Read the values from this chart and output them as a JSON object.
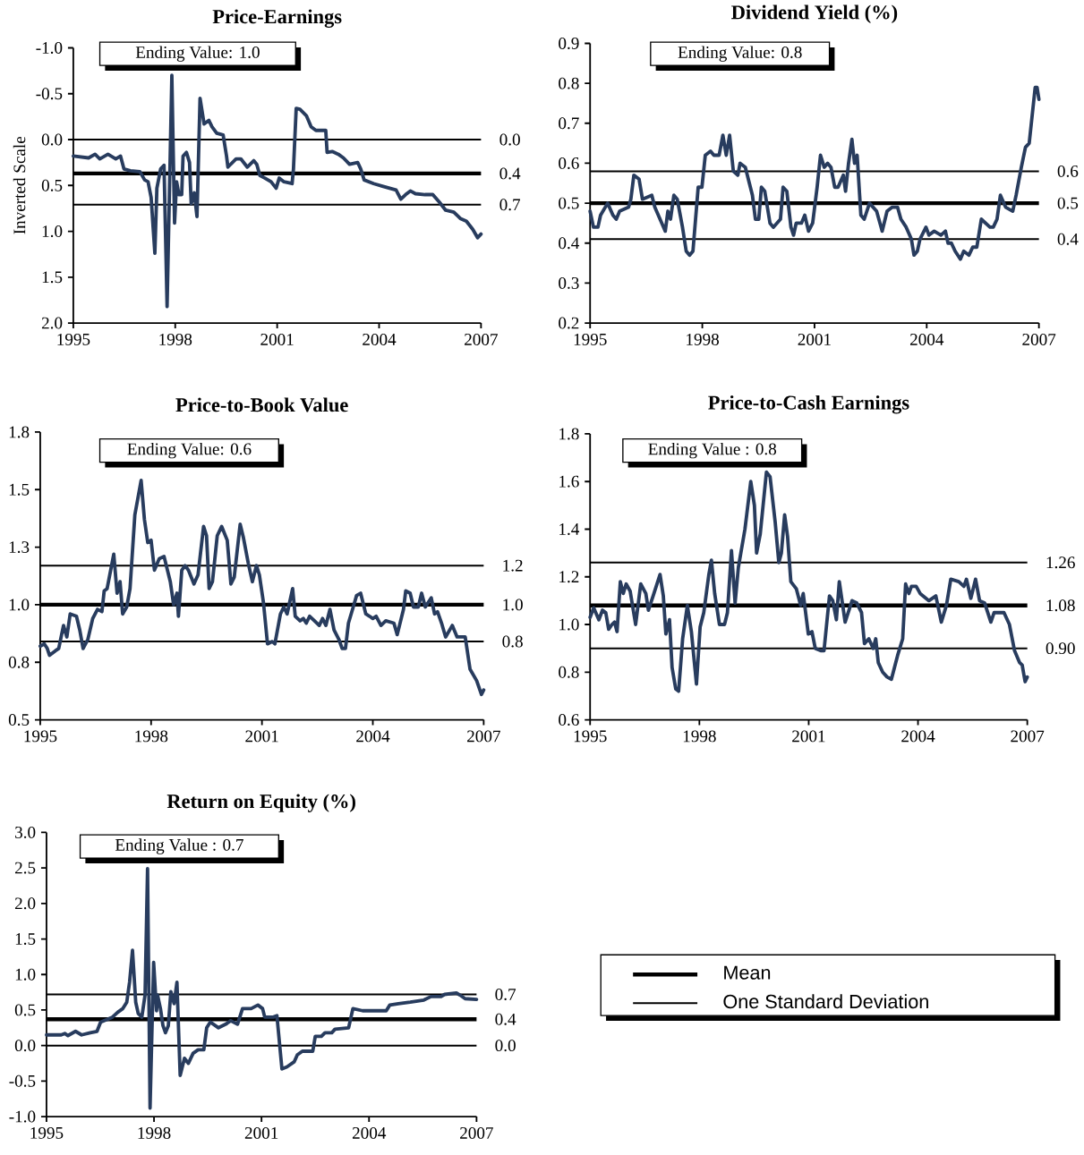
{
  "chart_data": [
    {
      "type": "line",
      "title": "Price-Earnings",
      "ylabel": "Inverted Scale",
      "annotations": [
        "Ending Value: 1.0"
      ],
      "xlim": [
        1995,
        2007
      ],
      "xticks": [
        1995,
        1998,
        2001,
        2004,
        2007
      ],
      "ylim": [
        2.0,
        -1.0
      ],
      "yticks": [
        {
          "value": -1,
          "label": "-1.0"
        },
        -0.5,
        {
          "value": 0,
          "label": "0.0"
        },
        0.5,
        {
          "value": 1,
          "label": "1.0"
        },
        1.5,
        {
          "value": 2,
          "label": "2.0"
        }
      ],
      "ref_lines": [
        {
          "axis": "y",
          "value": 0.0,
          "label": "0.0"
        },
        {
          "axis": "y",
          "value": 0.37,
          "label": "0.4"
        },
        {
          "axis": "y",
          "value": 0.71,
          "label": "0.7"
        }
      ],
      "series": [
        {
          "color": "#283c5e",
          "x": [
            1995.0,
            1995.45,
            1995.64,
            1995.78,
            1996.02,
            1996.25,
            1996.39,
            1996.49,
            1996.68,
            1996.96,
            1997.1,
            1997.2,
            1997.29,
            1997.4,
            1997.46,
            1997.57,
            1997.67,
            1997.76,
            1997.9,
            1997.98,
            1998.04,
            1998.11,
            1998.19,
            1998.23,
            1998.33,
            1998.42,
            1998.47,
            1998.56,
            1998.64,
            1998.73,
            1998.85,
            1998.92,
            1998.99,
            1999.08,
            1999.22,
            1999.41,
            1999.51,
            1999.55,
            1999.79,
            1999.93,
            2000.12,
            2000.31,
            2000.4,
            2000.49,
            2000.64,
            2000.82,
            2000.97,
            2001.06,
            2001.2,
            2001.44,
            2001.48,
            2001.56,
            2001.67,
            2001.86,
            2002.0,
            2002.14,
            2002.43,
            2002.47,
            2002.62,
            2002.8,
            2002.95,
            2003.13,
            2003.37,
            2003.46,
            2003.56,
            2003.84,
            2004.12,
            2004.5,
            2004.64,
            2004.78,
            2004.92,
            2005.07,
            2005.35,
            2005.58,
            2005.77,
            2005.96,
            2006.2,
            2006.39,
            2006.57,
            2006.76,
            2006.9,
            2007.0
          ],
          "values": [
            0.18,
            0.2,
            0.16,
            0.21,
            0.16,
            0.21,
            0.18,
            0.32,
            0.34,
            0.35,
            0.44,
            0.46,
            0.63,
            1.24,
            0.53,
            0.32,
            0.28,
            1.82,
            -0.7,
            0.91,
            0.46,
            0.6,
            0.6,
            0.18,
            0.14,
            0.25,
            0.7,
            0.58,
            0.84,
            -0.45,
            -0.17,
            -0.19,
            -0.21,
            -0.14,
            -0.07,
            -0.05,
            0.18,
            0.3,
            0.21,
            0.21,
            0.3,
            0.23,
            0.27,
            0.39,
            0.42,
            0.46,
            0.53,
            0.42,
            0.46,
            0.48,
            0.32,
            -0.34,
            -0.33,
            -0.26,
            -0.14,
            -0.1,
            -0.1,
            0.14,
            0.13,
            0.16,
            0.2,
            0.27,
            0.25,
            0.32,
            0.44,
            0.48,
            0.51,
            0.55,
            0.65,
            0.6,
            0.56,
            0.59,
            0.6,
            0.6,
            0.68,
            0.77,
            0.79,
            0.86,
            0.89,
            0.98,
            1.07,
            1.03
          ]
        }
      ]
    },
    {
      "type": "line",
      "title": "Dividend Yield (%)",
      "annotations": [
        "Ending Value: 0.8"
      ],
      "xlim": [
        1995,
        2007
      ],
      "xticks": [
        1995,
        1998,
        2001,
        2004,
        2007
      ],
      "ylim": [
        0.2,
        0.9
      ],
      "yticks": [
        0.2,
        0.3,
        0.4,
        0.5,
        0.6,
        0.7,
        0.8,
        0.9
      ],
      "ref_lines": [
        {
          "axis": "y",
          "value": 0.58,
          "label": "0.6"
        },
        {
          "axis": "y",
          "value": 0.5,
          "label": "0.5"
        },
        {
          "axis": "y",
          "value": 0.41,
          "label": "0.4"
        }
      ],
      "series": [
        {
          "color": "#283c5e",
          "x": [
            1995.0,
            1995.09,
            1995.21,
            1995.28,
            1995.47,
            1995.61,
            1995.7,
            1995.79,
            1996.03,
            1996.09,
            1996.17,
            1996.31,
            1996.4,
            1996.65,
            1996.73,
            1997.01,
            1997.08,
            1997.15,
            1997.24,
            1997.33,
            1997.47,
            1997.57,
            1997.66,
            1997.75,
            1997.89,
            1997.99,
            1998.08,
            1998.22,
            1998.31,
            1998.45,
            1998.55,
            1998.64,
            1998.73,
            1998.83,
            1998.95,
            1999.01,
            1999.15,
            1999.34,
            1999.42,
            1999.51,
            1999.58,
            1999.67,
            1999.81,
            1999.9,
            2000.09,
            2000.16,
            2000.26,
            2000.37,
            2000.44,
            2000.51,
            2000.65,
            2000.74,
            2000.84,
            2000.95,
            2001.07,
            2001.16,
            2001.26,
            2001.35,
            2001.44,
            2001.54,
            2001.63,
            2001.77,
            2001.83,
            2001.91,
            2002.0,
            2002.07,
            2002.14,
            2002.24,
            2002.33,
            2002.47,
            2002.66,
            2002.81,
            2002.94,
            2003.08,
            2003.22,
            2003.31,
            2003.45,
            2003.59,
            2003.66,
            2003.75,
            2003.82,
            2003.98,
            2004.06,
            2004.2,
            2004.38,
            2004.5,
            2004.57,
            2004.66,
            2004.76,
            2004.9,
            2004.99,
            2005.13,
            2005.23,
            2005.34,
            2005.46,
            2005.69,
            2005.78,
            2005.88,
            2005.97,
            2006.11,
            2006.3,
            2006.39,
            2006.53,
            2006.64,
            2006.74,
            2006.9,
            2006.95,
            2007.0
          ],
          "values": [
            0.48,
            0.44,
            0.44,
            0.47,
            0.5,
            0.47,
            0.46,
            0.48,
            0.49,
            0.51,
            0.57,
            0.56,
            0.51,
            0.52,
            0.49,
            0.43,
            0.48,
            0.46,
            0.52,
            0.51,
            0.44,
            0.38,
            0.37,
            0.38,
            0.54,
            0.54,
            0.62,
            0.63,
            0.62,
            0.62,
            0.67,
            0.62,
            0.67,
            0.58,
            0.57,
            0.6,
            0.59,
            0.52,
            0.46,
            0.46,
            0.54,
            0.53,
            0.45,
            0.44,
            0.46,
            0.54,
            0.53,
            0.44,
            0.42,
            0.45,
            0.45,
            0.47,
            0.43,
            0.45,
            0.54,
            0.62,
            0.59,
            0.6,
            0.59,
            0.54,
            0.54,
            0.57,
            0.53,
            0.6,
            0.66,
            0.6,
            0.62,
            0.47,
            0.46,
            0.5,
            0.48,
            0.43,
            0.48,
            0.49,
            0.49,
            0.46,
            0.44,
            0.41,
            0.37,
            0.38,
            0.41,
            0.44,
            0.42,
            0.43,
            0.42,
            0.43,
            0.4,
            0.4,
            0.38,
            0.36,
            0.38,
            0.37,
            0.39,
            0.39,
            0.46,
            0.44,
            0.44,
            0.46,
            0.52,
            0.49,
            0.48,
            0.52,
            0.59,
            0.64,
            0.65,
            0.79,
            0.79,
            0.76
          ]
        }
      ]
    },
    {
      "type": "line",
      "title": "Price-to-Book Value",
      "annotations": [
        "Ending Value: 0.6"
      ],
      "xlim": [
        1995,
        2007
      ],
      "xticks": [
        1995,
        1998,
        2001,
        2004,
        2007
      ],
      "ylim": [
        0.5,
        1.75
      ],
      "yticks": [
        0.5,
        {
          "value": 0.75,
          "label": "0.8"
        },
        {
          "value": 1,
          "label": "1.0"
        },
        {
          "value": 1.25,
          "label": "1.3"
        },
        1.5,
        {
          "value": 1.75,
          "label": "1.8"
        }
      ],
      "ref_lines": [
        {
          "axis": "y",
          "value": 1.17,
          "label": "1.2"
        },
        {
          "axis": "y",
          "value": 1.0,
          "label": "1.0"
        },
        {
          "axis": "y",
          "value": 0.84,
          "label": "0.8"
        }
      ],
      "series": [
        {
          "color": "#283c5e",
          "x": [
            1995.0,
            1995.11,
            1995.19,
            1995.25,
            1995.41,
            1995.5,
            1995.63,
            1995.72,
            1995.81,
            1995.98,
            1996.07,
            1996.16,
            1996.29,
            1996.42,
            1996.55,
            1996.67,
            1996.73,
            1996.81,
            1996.99,
            1997.08,
            1997.16,
            1997.23,
            1997.34,
            1997.43,
            1997.56,
            1997.73,
            1997.82,
            1997.91,
            1998.0,
            1998.09,
            1998.22,
            1998.35,
            1998.52,
            1998.61,
            1998.7,
            1998.74,
            1998.83,
            1998.92,
            1999.01,
            1999.16,
            1999.27,
            1999.42,
            1999.5,
            1999.57,
            1999.66,
            1999.79,
            1999.91,
            2000.06,
            2000.16,
            2000.25,
            2000.41,
            2000.5,
            2000.63,
            2000.74,
            2000.85,
            2000.93,
            2001.04,
            2001.15,
            2001.28,
            2001.35,
            2001.5,
            2001.59,
            2001.68,
            2001.83,
            2001.9,
            2002.03,
            2002.12,
            2002.2,
            2002.29,
            2002.42,
            2002.55,
            2002.64,
            2002.73,
            2002.84,
            2002.95,
            2003.08,
            2003.17,
            2003.26,
            2003.34,
            2003.47,
            2003.56,
            2003.67,
            2003.81,
            2003.91,
            2004.0,
            2004.09,
            2004.22,
            2004.35,
            2004.57,
            2004.66,
            2004.83,
            2004.89,
            2005.01,
            2005.1,
            2005.23,
            2005.32,
            2005.42,
            2005.58,
            2005.67,
            2005.75,
            2005.86,
            2005.97,
            2006.15,
            2006.28,
            2006.5,
            2006.63,
            2006.81,
            2006.94,
            2007.0
          ],
          "values": [
            0.82,
            0.83,
            0.81,
            0.78,
            0.8,
            0.81,
            0.91,
            0.86,
            0.96,
            0.95,
            0.89,
            0.81,
            0.85,
            0.94,
            0.98,
            0.97,
            1.06,
            1.07,
            1.22,
            1.05,
            1.1,
            0.96,
            0.99,
            1.07,
            1.39,
            1.54,
            1.37,
            1.27,
            1.28,
            1.15,
            1.2,
            1.21,
            1.1,
            1.0,
            1.05,
            0.95,
            1.15,
            1.17,
            1.15,
            1.09,
            1.13,
            1.34,
            1.3,
            1.07,
            1.1,
            1.3,
            1.34,
            1.28,
            1.09,
            1.12,
            1.35,
            1.29,
            1.18,
            1.1,
            1.17,
            1.13,
            1.01,
            0.83,
            0.84,
            0.83,
            0.96,
            0.99,
            0.96,
            1.07,
            0.95,
            0.93,
            0.94,
            0.92,
            0.95,
            0.93,
            0.91,
            0.94,
            0.91,
            0.98,
            0.89,
            0.85,
            0.81,
            0.81,
            0.92,
            0.99,
            1.04,
            1.05,
            0.96,
            0.95,
            0.94,
            0.95,
            0.91,
            0.93,
            0.92,
            0.87,
            0.98,
            1.06,
            1.05,
            0.99,
            0.99,
            1.05,
            0.99,
            1.03,
            0.96,
            0.97,
            0.92,
            0.86,
            0.91,
            0.86,
            0.86,
            0.72,
            0.67,
            0.61,
            0.63
          ]
        }
      ]
    },
    {
      "type": "line",
      "title": "Price-to-Cash Earnings",
      "annotations": [
        "Ending Value : 0.8"
      ],
      "xlim": [
        1995,
        2007
      ],
      "xticks": [
        1995,
        1998,
        2001,
        2004,
        2007
      ],
      "ylim": [
        0.6,
        1.8
      ],
      "yticks": [
        0.6,
        0.8,
        {
          "value": 1,
          "label": "1.0"
        },
        1.2,
        1.4,
        1.6,
        1.8
      ],
      "ref_lines": [
        {
          "axis": "y",
          "value": 1.26,
          "label": "1.26"
        },
        {
          "axis": "y",
          "value": 1.08,
          "label": "1.08"
        },
        {
          "axis": "y",
          "value": 0.9,
          "label": "0.90"
        }
      ],
      "series": [
        {
          "color": "#283c5e",
          "x": [
            1995.0,
            1995.1,
            1995.24,
            1995.34,
            1995.43,
            1995.51,
            1995.6,
            1995.67,
            1995.74,
            1995.83,
            1995.91,
            1995.99,
            1996.1,
            1996.25,
            1996.39,
            1996.53,
            1996.6,
            1996.73,
            1996.92,
            1997.01,
            1997.08,
            1997.18,
            1997.25,
            1997.35,
            1997.43,
            1997.54,
            1997.67,
            1997.78,
            1997.92,
            1998.02,
            1998.12,
            1998.26,
            1998.33,
            1998.42,
            1998.55,
            1998.69,
            1998.77,
            1998.88,
            1998.98,
            1999.07,
            1999.25,
            1999.41,
            1999.51,
            1999.57,
            1999.67,
            1999.84,
            1999.94,
            2000.08,
            2000.18,
            2000.25,
            2000.34,
            2000.42,
            2000.51,
            2000.66,
            2000.78,
            2000.85,
            2000.99,
            2001.09,
            2001.18,
            2001.33,
            2001.42,
            2001.57,
            2001.66,
            2001.76,
            2001.84,
            2002.0,
            2002.19,
            2002.32,
            2002.45,
            2002.53,
            2002.65,
            2002.77,
            2002.84,
            2002.91,
            2003.03,
            2003.15,
            2003.27,
            2003.44,
            2003.58,
            2003.66,
            2003.75,
            2003.82,
            2003.95,
            2004.06,
            2004.3,
            2004.49,
            2004.64,
            2004.78,
            2004.9,
            2005.12,
            2005.26,
            2005.33,
            2005.45,
            2005.58,
            2005.69,
            2005.83,
            2006.0,
            2006.09,
            2006.36,
            2006.51,
            2006.65,
            2006.79,
            2006.86,
            2006.94,
            2007.0
          ],
          "values": [
            1.03,
            1.07,
            1.02,
            1.06,
            1.05,
            0.98,
            1.0,
            1.01,
            0.97,
            1.18,
            1.13,
            1.17,
            1.14,
            1.0,
            1.17,
            1.13,
            1.06,
            1.12,
            1.21,
            1.12,
            0.96,
            1.02,
            0.82,
            0.73,
            0.72,
            0.94,
            1.08,
            0.97,
            0.75,
            0.99,
            1.05,
            1.21,
            1.27,
            1.13,
            1.0,
            1.0,
            1.05,
            1.31,
            1.09,
            1.24,
            1.4,
            1.6,
            1.5,
            1.3,
            1.38,
            1.64,
            1.62,
            1.43,
            1.26,
            1.3,
            1.46,
            1.37,
            1.18,
            1.15,
            1.08,
            1.13,
            0.96,
            0.97,
            0.9,
            0.89,
            0.89,
            1.12,
            1.1,
            1.02,
            1.18,
            1.01,
            1.1,
            1.09,
            1.05,
            0.92,
            0.94,
            0.9,
            0.94,
            0.84,
            0.8,
            0.78,
            0.77,
            0.87,
            0.94,
            1.17,
            1.13,
            1.16,
            1.16,
            1.13,
            1.1,
            1.12,
            1.01,
            1.08,
            1.19,
            1.18,
            1.16,
            1.19,
            1.11,
            1.19,
            1.1,
            1.09,
            1.01,
            1.05,
            1.05,
            1.0,
            0.89,
            0.84,
            0.83,
            0.76,
            0.78
          ]
        }
      ]
    },
    {
      "type": "line",
      "title": "Return on Equity (%)",
      "annotations": [
        "Ending Value : 0.7"
      ],
      "xlim": [
        1995,
        2007
      ],
      "xticks": [
        1995,
        1998,
        2001,
        2004,
        2007
      ],
      "ylim": [
        -1.0,
        3.0
      ],
      "yticks": [
        {
          "value": -1,
          "label": "-1.0"
        },
        -0.5,
        {
          "value": 0,
          "label": "0.0"
        },
        0.5,
        {
          "value": 1,
          "label": "1.0"
        },
        1.5,
        {
          "value": 2,
          "label": "2.0"
        },
        2.5,
        {
          "value": 3,
          "label": "3.0"
        }
      ],
      "ref_lines": [
        {
          "axis": "y",
          "value": 0.72,
          "label": "0.7"
        },
        {
          "axis": "y",
          "value": 0.37,
          "label": "0.4"
        },
        {
          "axis": "y",
          "value": 0.0,
          "label": "0.0"
        }
      ],
      "series": [
        {
          "color": "#283c5e",
          "x": [
            1995.0,
            1995.41,
            1995.51,
            1995.6,
            1995.81,
            1995.98,
            1996.22,
            1996.41,
            1996.51,
            1996.84,
            1996.99,
            1997.13,
            1997.24,
            1997.32,
            1997.4,
            1997.49,
            1997.56,
            1997.66,
            1997.75,
            1997.82,
            1997.89,
            1997.99,
            1998.07,
            1998.1,
            1998.18,
            1998.25,
            1998.32,
            1998.4,
            1998.47,
            1998.56,
            1998.64,
            1998.73,
            1998.85,
            1998.96,
            1999.09,
            1999.23,
            1999.39,
            1999.47,
            1999.57,
            1999.8,
            2000.0,
            2000.14,
            2000.33,
            2000.47,
            2000.71,
            2000.9,
            2001.03,
            2001.09,
            2001.33,
            2001.43,
            2001.57,
            2001.71,
            2001.91,
            2002.0,
            2002.14,
            2002.43,
            2002.5,
            2002.67,
            2002.77,
            2002.96,
            2003.05,
            2003.24,
            2003.43,
            2003.55,
            2003.82,
            2004.2,
            2004.48,
            2004.58,
            2004.82,
            2005.15,
            2005.53,
            2005.73,
            2006.01,
            2006.11,
            2006.44,
            2006.54,
            2006.68,
            2007.0
          ],
          "values": [
            0.15,
            0.15,
            0.17,
            0.14,
            0.2,
            0.15,
            0.18,
            0.2,
            0.33,
            0.4,
            0.47,
            0.52,
            0.61,
            0.9,
            1.34,
            0.61,
            0.45,
            0.4,
            0.71,
            2.49,
            -0.88,
            1.17,
            0.49,
            0.71,
            0.52,
            0.28,
            0.18,
            0.28,
            0.76,
            0.59,
            0.89,
            -0.42,
            -0.18,
            -0.25,
            -0.11,
            -0.06,
            -0.06,
            0.25,
            0.33,
            0.25,
            0.3,
            0.35,
            0.3,
            0.52,
            0.52,
            0.57,
            0.52,
            0.4,
            0.4,
            0.42,
            -0.33,
            -0.3,
            -0.23,
            -0.13,
            -0.08,
            -0.08,
            0.13,
            0.13,
            0.18,
            0.18,
            0.23,
            0.24,
            0.25,
            0.52,
            0.49,
            0.49,
            0.49,
            0.57,
            0.59,
            0.61,
            0.64,
            0.69,
            0.69,
            0.72,
            0.74,
            0.71,
            0.66,
            0.65
          ]
        }
      ]
    },
    {
      "type": "other",
      "annotations": [
        "Mean",
        "One Standard Deviation"
      ]
    }
  ]
}
